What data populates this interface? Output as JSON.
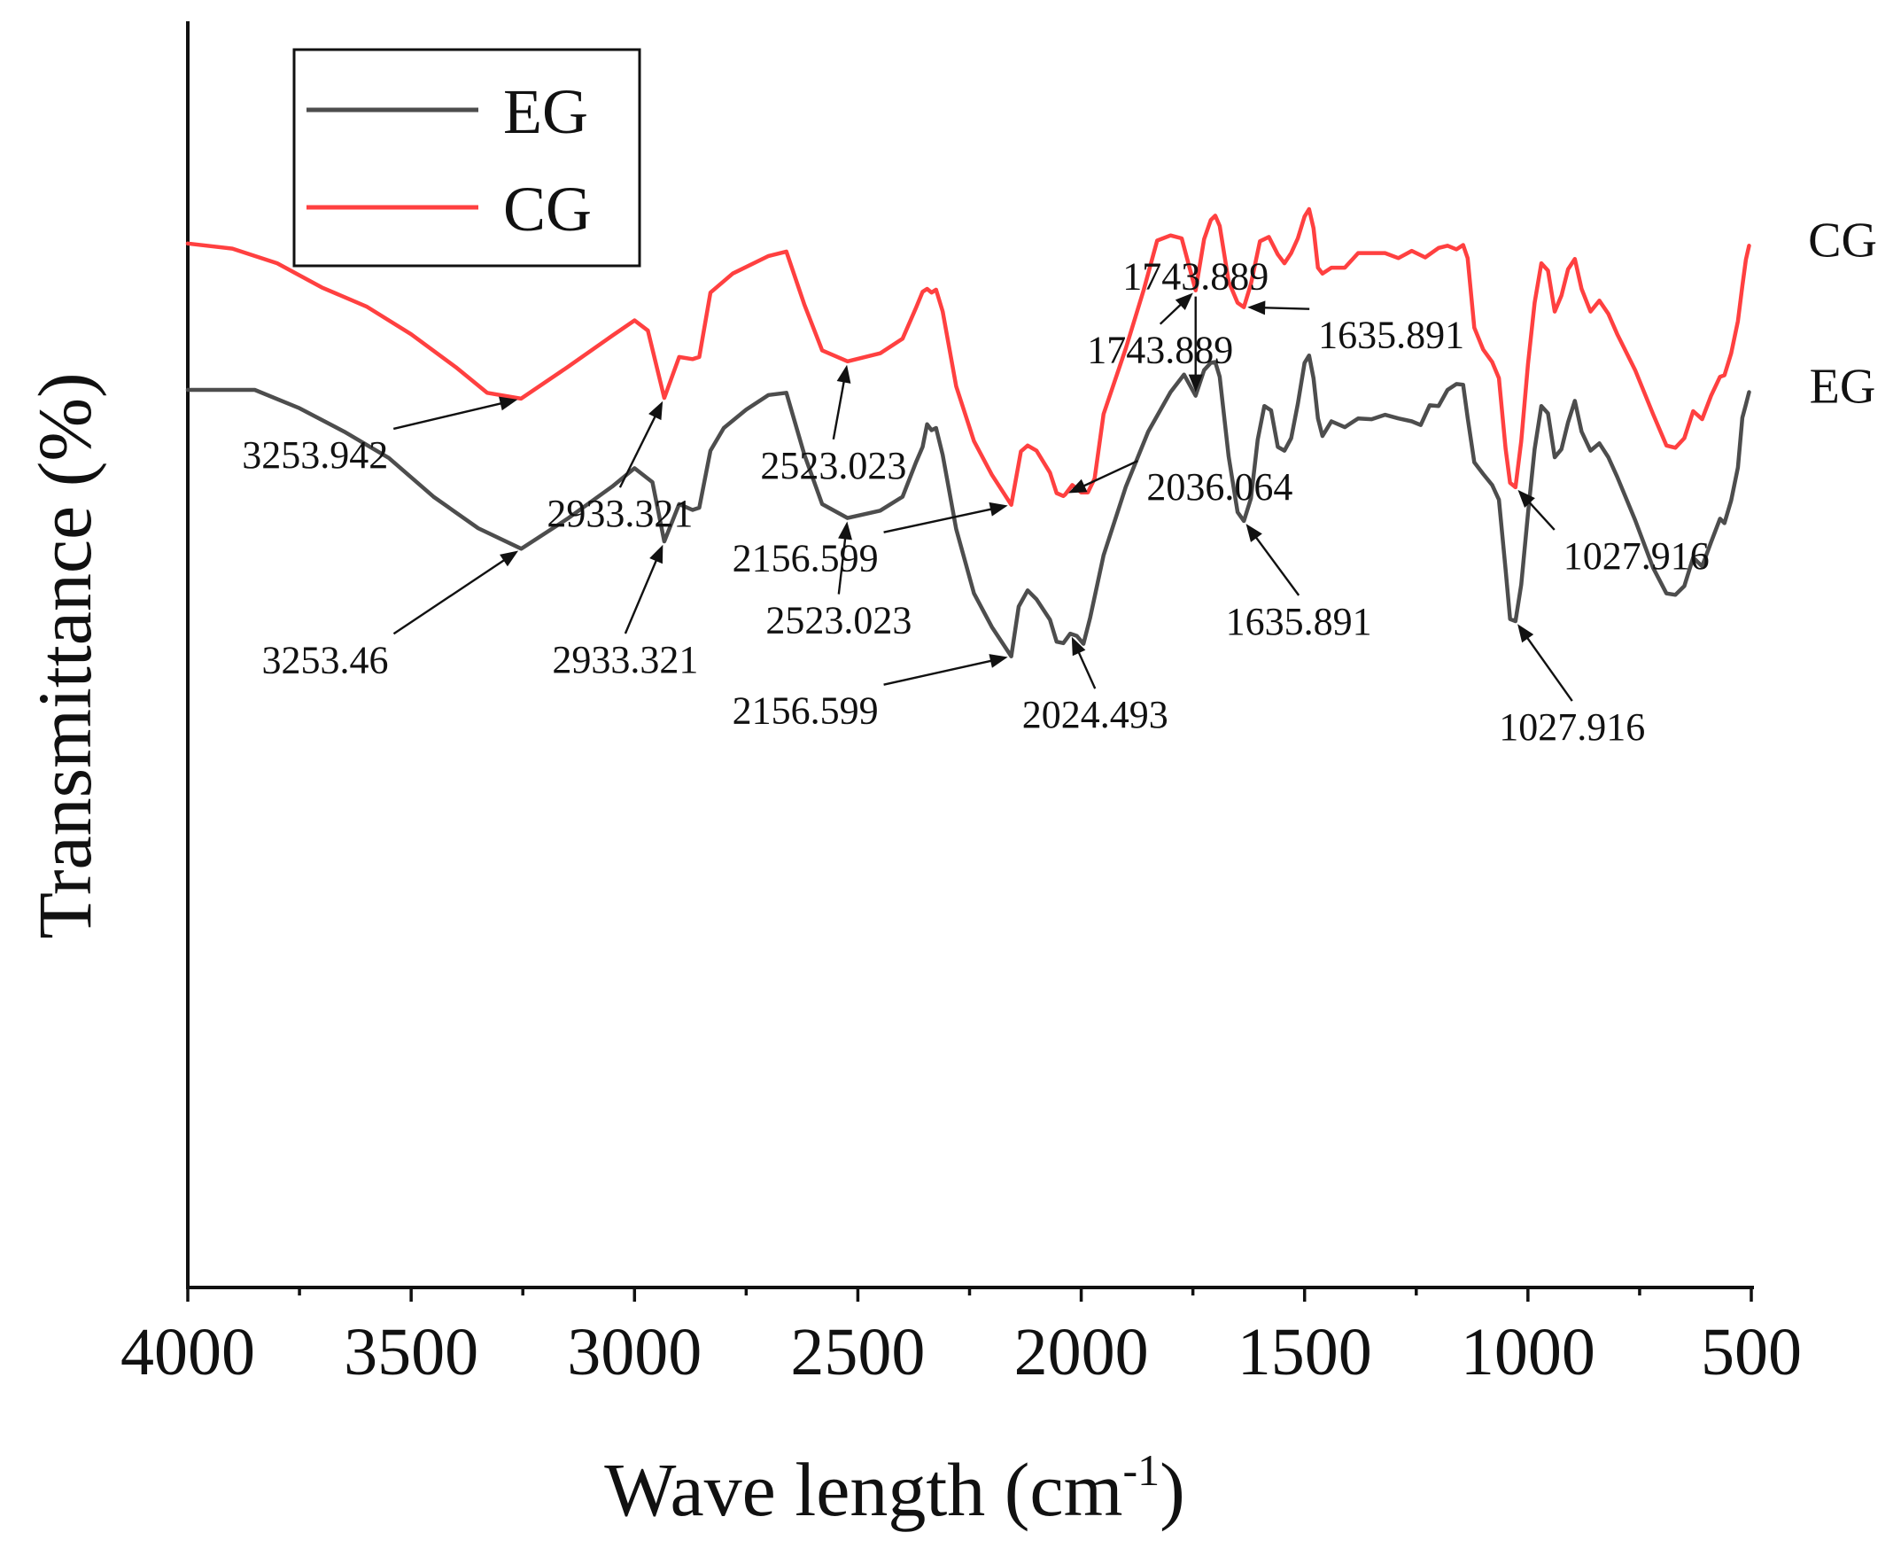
{
  "chart_data": {
    "type": "line",
    "title": "",
    "xlabel": "Wave length (cm",
    "xlabel_sup": "-1",
    "xlabel_end": ")",
    "ylabel": "Transmittance (%)",
    "xlim": [
      4000,
      500
    ],
    "ylim": [
      0,
      100
    ],
    "x_ticks": [
      4000,
      3500,
      3000,
      2500,
      2000,
      1500,
      1000,
      500
    ],
    "x_tick_labels": [
      "4000",
      "3500",
      "3000",
      "2500",
      "2000",
      "1500",
      "1000",
      "500"
    ],
    "y_ticks_shown": false,
    "grid": false,
    "legend_position": "top-left",
    "series": [
      {
        "name": "EG",
        "end_label": "EG",
        "color": "#4d4d4d",
        "points": [
          [
            4000,
            75.3
          ],
          [
            3850,
            75.3
          ],
          [
            3750,
            72.8
          ],
          [
            3650,
            69.6
          ],
          [
            3550,
            66.0
          ],
          [
            3450,
            60.7
          ],
          [
            3350,
            56.4
          ],
          [
            3253.46,
            53.6
          ],
          [
            3150,
            57.7
          ],
          [
            3050,
            62.1
          ],
          [
            3000,
            64.6
          ],
          [
            2960,
            62.7
          ],
          [
            2933.321,
            54.6
          ],
          [
            2900,
            59.7
          ],
          [
            2870,
            58.9
          ],
          [
            2855,
            59.2
          ],
          [
            2830,
            67.0
          ],
          [
            2800,
            70.1
          ],
          [
            2750,
            72.6
          ],
          [
            2700,
            74.6
          ],
          [
            2660,
            74.9
          ],
          [
            2620,
            66.5
          ],
          [
            2580,
            59.7
          ],
          [
            2523.023,
            57.8
          ],
          [
            2450,
            58.8
          ],
          [
            2400,
            60.7
          ],
          [
            2370,
            65.4
          ],
          [
            2355,
            67.5
          ],
          [
            2345,
            70.6
          ],
          [
            2335,
            69.8
          ],
          [
            2325,
            70.1
          ],
          [
            2310,
            66.4
          ],
          [
            2280,
            56.3
          ],
          [
            2240,
            47.5
          ],
          [
            2200,
            42.9
          ],
          [
            2156.599,
            38.9
          ],
          [
            2140,
            45.7
          ],
          [
            2120,
            47.9
          ],
          [
            2100,
            46.7
          ],
          [
            2070,
            43.9
          ],
          [
            2055,
            40.9
          ],
          [
            2040,
            40.7
          ],
          [
            2024.493,
            42.0
          ],
          [
            2010,
            41.7
          ],
          [
            1995,
            40.6
          ],
          [
            1980,
            44.2
          ],
          [
            1950,
            52.7
          ],
          [
            1900,
            62.1
          ],
          [
            1850,
            69.6
          ],
          [
            1800,
            75.0
          ],
          [
            1770,
            77.4
          ],
          [
            1743.889,
            74.5
          ],
          [
            1725,
            78.0
          ],
          [
            1710,
            79.0
          ],
          [
            1700,
            79.1
          ],
          [
            1690,
            77.1
          ],
          [
            1670,
            66.2
          ],
          [
            1650,
            58.6
          ],
          [
            1635.891,
            57.4
          ],
          [
            1620,
            60.5
          ],
          [
            1605,
            68.5
          ],
          [
            1590,
            73.1
          ],
          [
            1575,
            72.5
          ],
          [
            1560,
            67.5
          ],
          [
            1545,
            67.0
          ],
          [
            1530,
            68.7
          ],
          [
            1515,
            73.4
          ],
          [
            1500,
            79.0
          ],
          [
            1490,
            80.0
          ],
          [
            1480,
            76.9
          ],
          [
            1470,
            71.4
          ],
          [
            1460,
            69.0
          ],
          [
            1440,
            71.0
          ],
          [
            1410,
            70.2
          ],
          [
            1380,
            71.4
          ],
          [
            1350,
            71.3
          ],
          [
            1320,
            71.9
          ],
          [
            1290,
            71.4
          ],
          [
            1260,
            71.0
          ],
          [
            1240,
            70.5
          ],
          [
            1220,
            73.2
          ],
          [
            1200,
            73.1
          ],
          [
            1180,
            75.3
          ],
          [
            1160,
            76.1
          ],
          [
            1145,
            76.0
          ],
          [
            1135,
            71.5
          ],
          [
            1120,
            65.4
          ],
          [
            1100,
            63.8
          ],
          [
            1080,
            62.3
          ],
          [
            1065,
            60.3
          ],
          [
            1050,
            50.8
          ],
          [
            1040,
            44.0
          ],
          [
            1027.916,
            43.7
          ],
          [
            1015,
            48.7
          ],
          [
            1000,
            58.4
          ],
          [
            985,
            67.2
          ],
          [
            970,
            73.1
          ],
          [
            955,
            72.1
          ],
          [
            940,
            66.1
          ],
          [
            925,
            67.2
          ],
          [
            910,
            70.9
          ],
          [
            895,
            73.8
          ],
          [
            880,
            69.6
          ],
          [
            860,
            67.0
          ],
          [
            840,
            68.0
          ],
          [
            820,
            66.1
          ],
          [
            800,
            63.4
          ],
          [
            760,
            57.5
          ],
          [
            720,
            51.0
          ],
          [
            690,
            47.5
          ],
          [
            670,
            47.3
          ],
          [
            650,
            48.5
          ],
          [
            630,
            52.4
          ],
          [
            610,
            51.2
          ],
          [
            590,
            54.5
          ],
          [
            570,
            57.7
          ],
          [
            560,
            57.1
          ],
          [
            545,
            60.2
          ],
          [
            530,
            64.7
          ],
          [
            520,
            71.5
          ],
          [
            512,
            73.3
          ],
          [
            505,
            75.0
          ]
        ]
      },
      {
        "name": "CG",
        "end_label": "CG",
        "color": "#ff4040",
        "points": [
          [
            4000,
            95.3
          ],
          [
            3900,
            94.6
          ],
          [
            3800,
            92.6
          ],
          [
            3700,
            89.3
          ],
          [
            3600,
            86.7
          ],
          [
            3500,
            82.9
          ],
          [
            3400,
            78.4
          ],
          [
            3330,
            74.9
          ],
          [
            3253.942,
            74.1
          ],
          [
            3150,
            78.4
          ],
          [
            3050,
            82.7
          ],
          [
            3000,
            84.8
          ],
          [
            2970,
            83.4
          ],
          [
            2933.321,
            74.2
          ],
          [
            2900,
            79.8
          ],
          [
            2870,
            79.5
          ],
          [
            2855,
            79.8
          ],
          [
            2830,
            88.6
          ],
          [
            2780,
            91.2
          ],
          [
            2700,
            93.6
          ],
          [
            2660,
            94.2
          ],
          [
            2620,
            87.0
          ],
          [
            2580,
            80.7
          ],
          [
            2523.023,
            79.2
          ],
          [
            2450,
            80.3
          ],
          [
            2400,
            82.3
          ],
          [
            2370,
            86.5
          ],
          [
            2355,
            88.7
          ],
          [
            2345,
            89.1
          ],
          [
            2335,
            88.6
          ],
          [
            2325,
            89.0
          ],
          [
            2310,
            86.0
          ],
          [
            2280,
            75.8
          ],
          [
            2240,
            68.3
          ],
          [
            2200,
            63.7
          ],
          [
            2156.599,
            59.6
          ],
          [
            2135,
            66.9
          ],
          [
            2120,
            67.7
          ],
          [
            2100,
            67.0
          ],
          [
            2070,
            64.0
          ],
          [
            2055,
            61.2
          ],
          [
            2040,
            60.8
          ],
          [
            2036.064,
            61.0
          ],
          [
            2020,
            62.3
          ],
          [
            2000,
            61.3
          ],
          [
            1985,
            61.3
          ],
          [
            1970,
            63.2
          ],
          [
            1950,
            72.0
          ],
          [
            1900,
            81.0
          ],
          [
            1860,
            89.0
          ],
          [
            1830,
            95.7
          ],
          [
            1800,
            96.4
          ],
          [
            1775,
            96.0
          ],
          [
            1743.889,
            88.9
          ],
          [
            1725,
            95.9
          ],
          [
            1710,
            98.5
          ],
          [
            1700,
            99.1
          ],
          [
            1690,
            97.7
          ],
          [
            1670,
            90.1
          ],
          [
            1650,
            87.2
          ],
          [
            1635.891,
            86.6
          ],
          [
            1620,
            89.8
          ],
          [
            1600,
            95.6
          ],
          [
            1580,
            96.2
          ],
          [
            1560,
            93.8
          ],
          [
            1545,
            92.6
          ],
          [
            1530,
            94.0
          ],
          [
            1515,
            96.0
          ],
          [
            1500,
            99.0
          ],
          [
            1490,
            100.0
          ],
          [
            1480,
            97.4
          ],
          [
            1470,
            92.0
          ],
          [
            1460,
            91.2
          ],
          [
            1440,
            92.0
          ],
          [
            1410,
            92.0
          ],
          [
            1380,
            94.0
          ],
          [
            1350,
            94.0
          ],
          [
            1320,
            94.0
          ],
          [
            1290,
            93.3
          ],
          [
            1260,
            94.3
          ],
          [
            1230,
            93.4
          ],
          [
            1200,
            94.7
          ],
          [
            1180,
            95.0
          ],
          [
            1160,
            94.5
          ],
          [
            1145,
            95.1
          ],
          [
            1135,
            93.3
          ],
          [
            1120,
            83.8
          ],
          [
            1100,
            80.8
          ],
          [
            1080,
            79.1
          ],
          [
            1065,
            76.9
          ],
          [
            1050,
            67.3
          ],
          [
            1040,
            62.6
          ],
          [
            1027.916,
            62.0
          ],
          [
            1015,
            68.3
          ],
          [
            1000,
            78.8
          ],
          [
            985,
            87.2
          ],
          [
            970,
            92.6
          ],
          [
            955,
            91.6
          ],
          [
            940,
            86.0
          ],
          [
            925,
            88.2
          ],
          [
            910,
            91.8
          ],
          [
            895,
            93.2
          ],
          [
            880,
            89.1
          ],
          [
            860,
            86.0
          ],
          [
            840,
            87.5
          ],
          [
            820,
            85.7
          ],
          [
            800,
            82.9
          ],
          [
            760,
            78.0
          ],
          [
            720,
            72.0
          ],
          [
            690,
            67.7
          ],
          [
            670,
            67.4
          ],
          [
            650,
            68.7
          ],
          [
            630,
            72.4
          ],
          [
            610,
            71.3
          ],
          [
            590,
            74.5
          ],
          [
            570,
            77.1
          ],
          [
            560,
            77.3
          ],
          [
            545,
            80.3
          ],
          [
            530,
            84.7
          ],
          [
            520,
            89.5
          ],
          [
            512,
            93.1
          ],
          [
            505,
            95.0
          ]
        ]
      }
    ],
    "annotations": [
      {
        "series": "CG",
        "text": "3253.942",
        "x": 3253.942
      },
      {
        "series": "CG",
        "text": "2933.321",
        "x": 2933.321
      },
      {
        "series": "CG",
        "text": "2523.023",
        "x": 2523.023
      },
      {
        "series": "CG",
        "text": "2156.599",
        "x": 2156.599
      },
      {
        "series": "CG",
        "text": "2036.064",
        "x": 2036.064
      },
      {
        "series": "CG",
        "text": "1743.889",
        "x": 1743.889
      },
      {
        "series": "CG",
        "text": "1635.891",
        "x": 1635.891
      },
      {
        "series": "CG",
        "text": "1027.916",
        "x": 1027.916
      },
      {
        "series": "EG",
        "text": "3253.46",
        "x": 3253.46
      },
      {
        "series": "EG",
        "text": "2933.321",
        "x": 2933.321
      },
      {
        "series": "EG",
        "text": "2523.023",
        "x": 2523.023
      },
      {
        "series": "EG",
        "text": "2156.599",
        "x": 2156.599
      },
      {
        "series": "EG",
        "text": "2024.493",
        "x": 2024.493
      },
      {
        "series": "EG",
        "text": "1743.889",
        "x": 1743.889
      },
      {
        "series": "EG",
        "text": "1635.891",
        "x": 1635.891
      },
      {
        "series": "EG",
        "text": "1027.916",
        "x": 1027.916
      }
    ],
    "legend": [
      {
        "label": "EG",
        "color": "#4d4d4d"
      },
      {
        "label": "CG",
        "color": "#ff4040"
      }
    ]
  }
}
